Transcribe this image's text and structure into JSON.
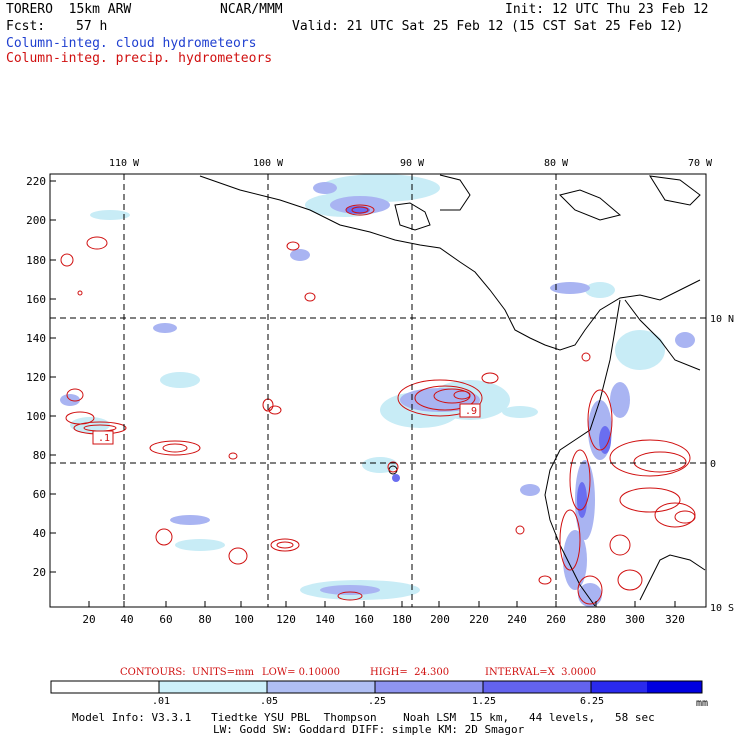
{
  "header": {
    "model": "TORERO  15km ARW",
    "org": "NCAR/MMM",
    "init": "Init: 12 UTC Thu 23 Feb 12",
    "fcst_label": "Fcst:",
    "fcst_hours": "57 h",
    "valid": "Valid: 21 UTC Sat 25 Feb 12 (15 CST Sat 25 Feb 12)",
    "legend_cloud": "Column-integ. cloud hydrometeors",
    "legend_precip": "Column-integ. precip. hydrometeors"
  },
  "map": {
    "top_lon_labels": [
      "110 W",
      "100 W",
      "90 W",
      "80 W",
      "70 W"
    ],
    "right_lat_labels": [
      "10 N",
      "0",
      "10 S"
    ],
    "y_ticks": [
      "220",
      "200",
      "180",
      "160",
      "140",
      "120",
      "100",
      "80",
      "60",
      "40",
      "20"
    ],
    "x_ticks": [
      "20",
      "40",
      "60",
      "80",
      "100",
      "120",
      "140",
      "160",
      "180",
      "200",
      "220",
      "240",
      "260",
      "280",
      "300",
      "320"
    ],
    "contour_labels": [
      ".1",
      ".9"
    ],
    "colors": {
      "precip": "#d01010",
      "cloud_light": "#c8ecf6",
      "cloud_mid": "#a9b4f2",
      "cloud_dark": "#6a6ef0",
      "coast": "#000000"
    }
  },
  "contours_info": {
    "label": "CONTOURS:",
    "units": "UNITS=mm",
    "low": "LOW= 0.10000",
    "high": "HIGH=  24.300",
    "interval": "INTERVAL=X  3.0000"
  },
  "colorbar": {
    "labels": [
      ".01",
      ".05",
      ".25",
      "1.25",
      "6.25"
    ],
    "unit": "mm",
    "colors": [
      "#ffffff",
      "#cdf0fa",
      "#b0bff4",
      "#8f95f0",
      "#6363ee",
      "#2a2aee",
      "#0000e0"
    ]
  },
  "model_info": {
    "line1": "Model Info: V3.3.1   Tiedtke YSU PBL  Thompson    Noah LSM  15 km,   44 levels,   58 sec",
    "line2": "LW: Godd SW: Goddard DIFF: simple KM: 2D Smagor"
  }
}
